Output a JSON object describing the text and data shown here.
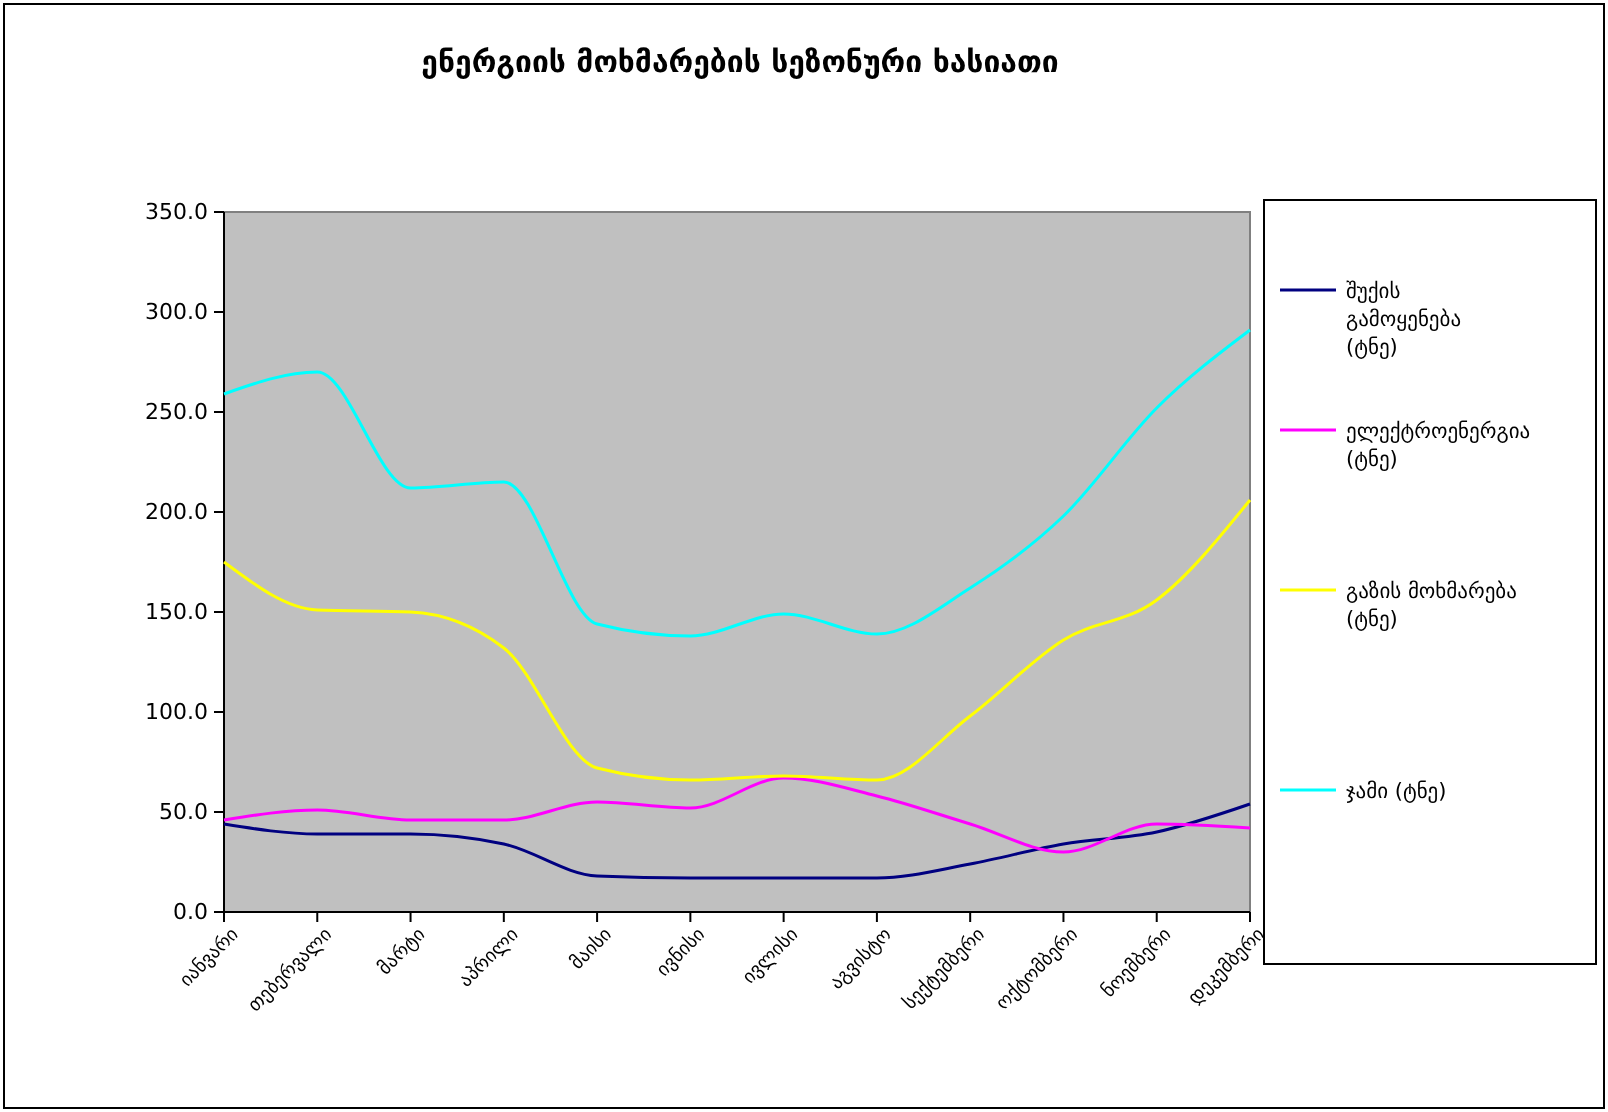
{
  "chart_data": {
    "type": "line",
    "title": "ენერგიის მოხმარების სეზონური ხასიათი",
    "categories": [
      "იანვარი",
      "თებერვალი",
      "მარტი",
      "აპრილი",
      "მაისი",
      "ივნისი",
      "ივლისი",
      "აგვისტო",
      "სექტემბერი",
      "ოქტომბერი",
      "ნოემბერი",
      "დეკემბერი"
    ],
    "series": [
      {
        "name": "შუქის გამოყენება (ტნე)",
        "color": "#000080",
        "values": [
          44,
          39,
          39,
          34,
          18,
          17,
          17,
          17,
          24,
          34,
          40,
          54
        ]
      },
      {
        "name": "ელექტროენერგია (ტნე)",
        "color": "#ff00ff",
        "values": [
          46,
          51,
          46,
          46,
          55,
          52,
          67,
          58,
          44,
          30,
          44,
          42
        ]
      },
      {
        "name": "გაზის მოხმარება (ტნე)",
        "color": "#ffff00",
        "values": [
          175,
          151,
          150,
          132,
          72,
          66,
          68,
          66,
          98,
          136,
          156,
          206
        ]
      },
      {
        "name": "ჯამი (ტნე)",
        "color": "#00ffff",
        "values": [
          259,
          270,
          212,
          215,
          144,
          138,
          149,
          139,
          162,
          198,
          252,
          291
        ]
      }
    ],
    "ylim": [
      0,
      350
    ],
    "yticks": [
      {
        "value": 0,
        "label": "0.0"
      },
      {
        "value": 50,
        "label": "50.0"
      },
      {
        "value": 100,
        "label": "100.0"
      },
      {
        "value": 150,
        "label": "150.0"
      },
      {
        "value": 200,
        "label": "200.0"
      },
      {
        "value": 250,
        "label": "250.0"
      },
      {
        "value": 300,
        "label": "300.0"
      },
      {
        "value": 350,
        "label": "350.0"
      }
    ],
    "grid": false,
    "legend": "right",
    "marker": "none",
    "line_style": "solid"
  }
}
